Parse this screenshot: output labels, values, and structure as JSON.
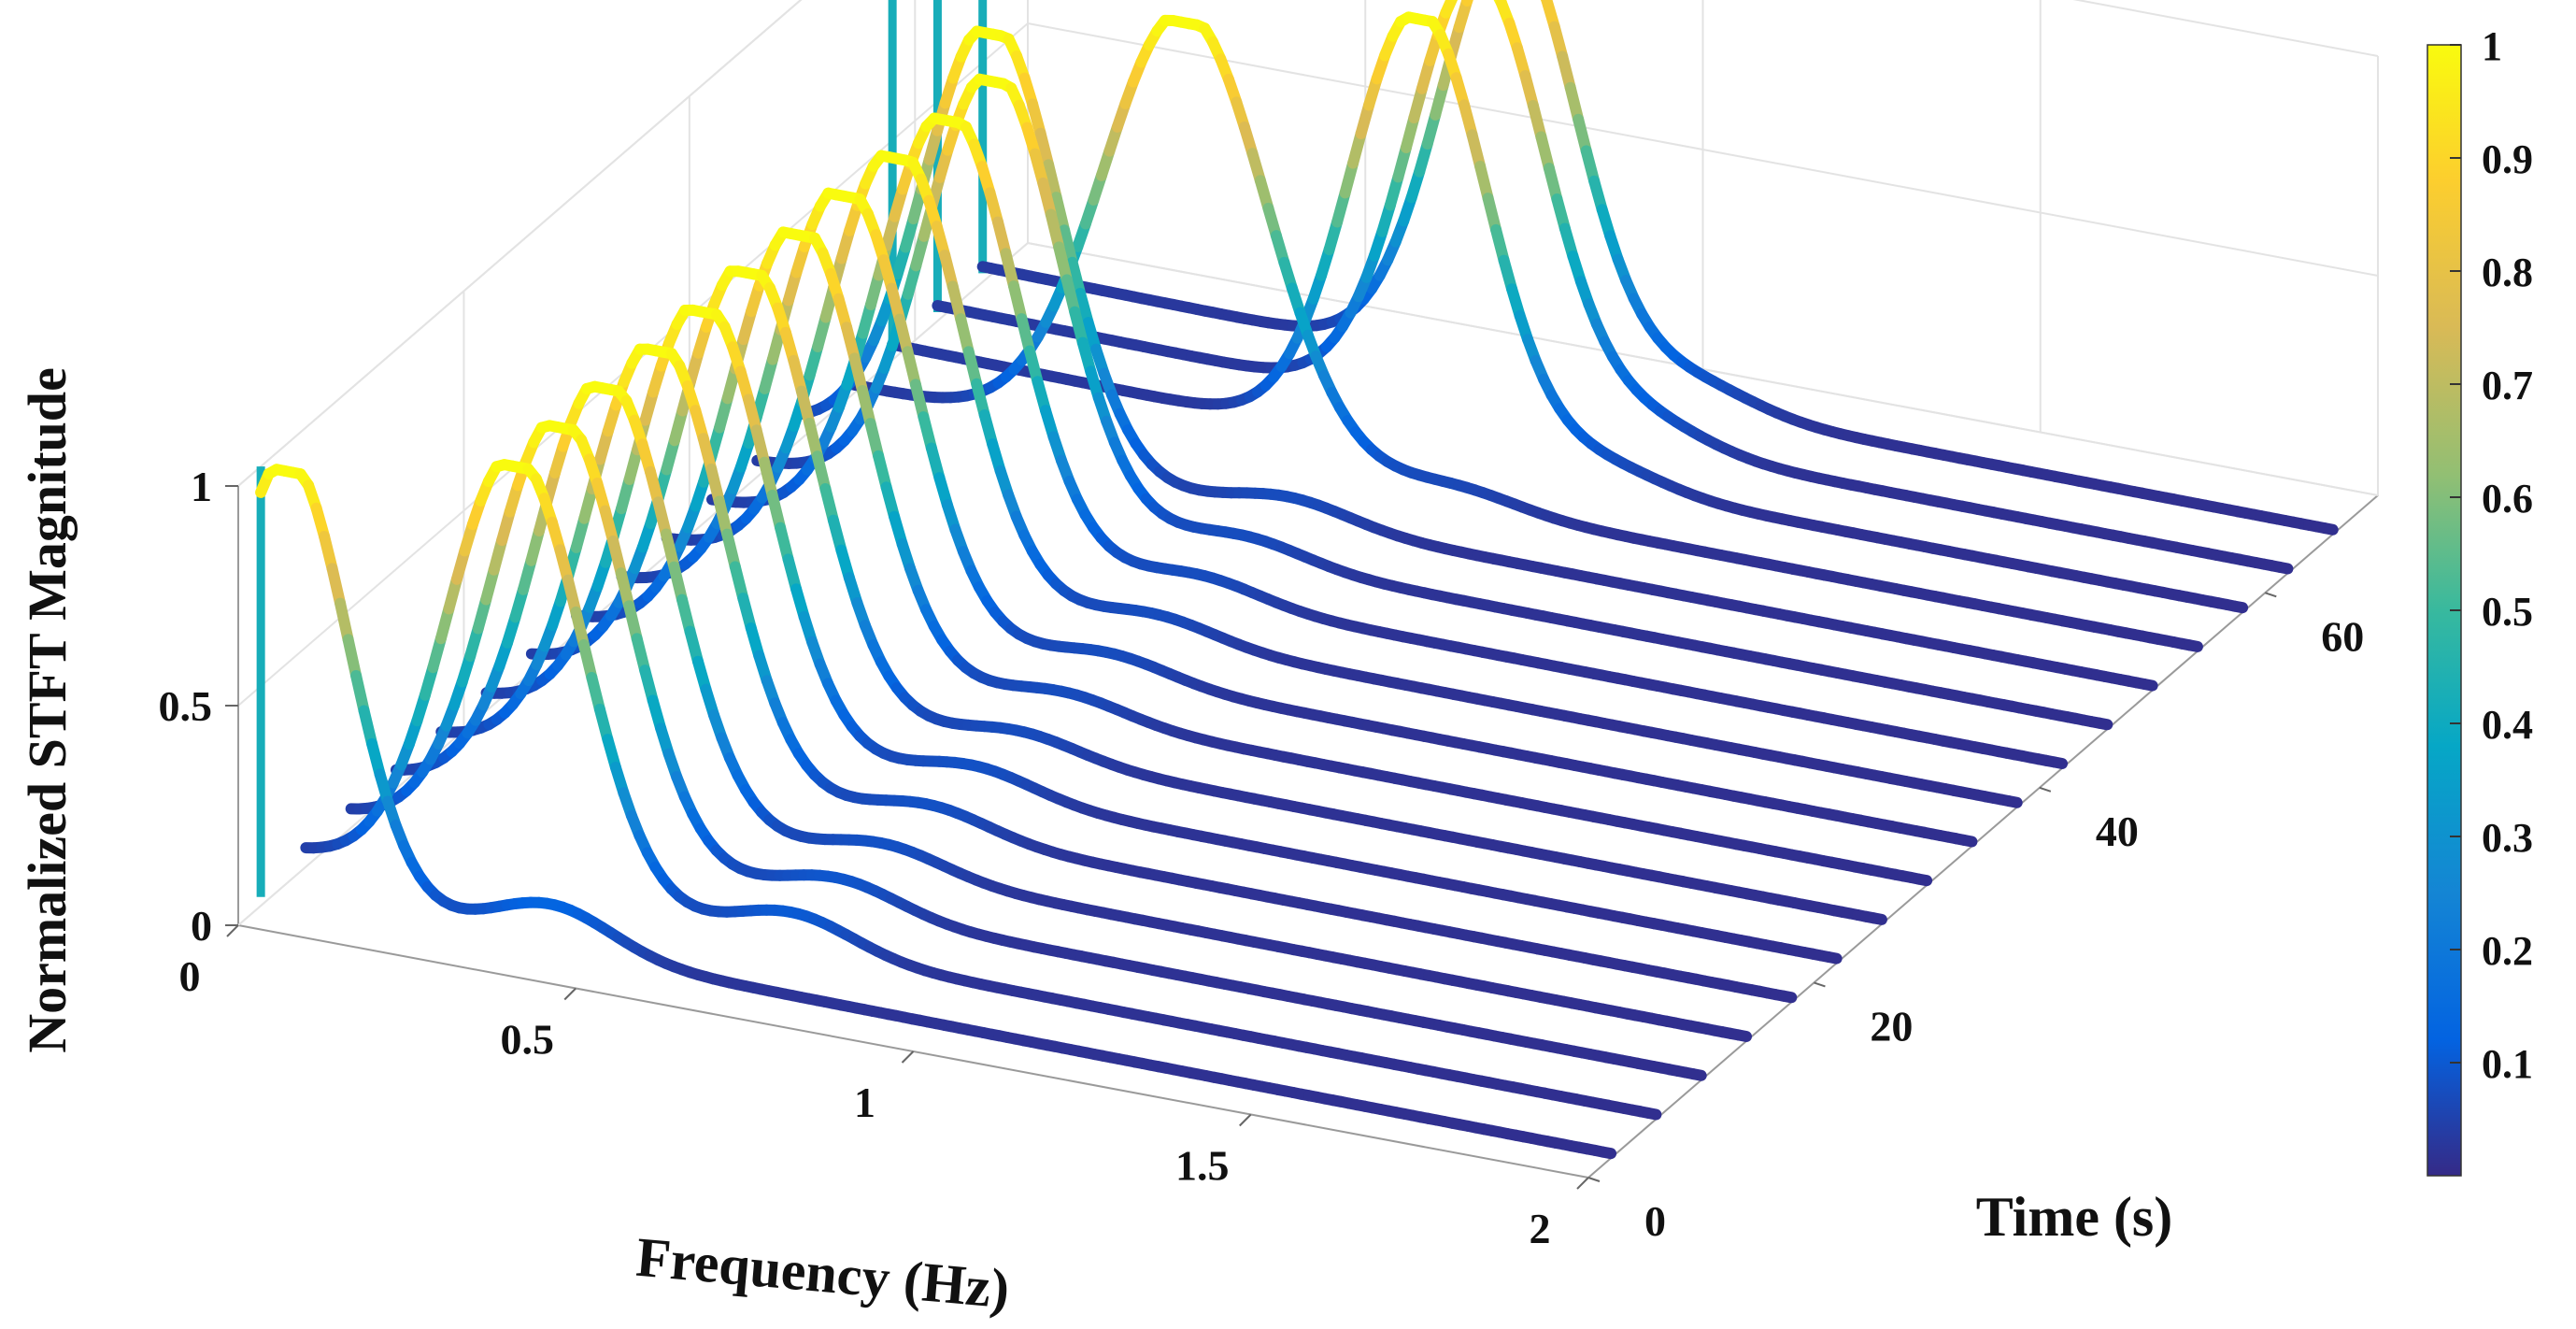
{
  "chart_data": {
    "type": "waterfall-3d-line",
    "title": "",
    "xlabel": "Frequency (Hz)",
    "ylabel": "Time (s)",
    "zlabel": "Normalized STFT Magnitude",
    "xlim": [
      0,
      2
    ],
    "ylim": [
      0,
      70
    ],
    "zlim": [
      0,
      1
    ],
    "x_ticks": [
      "0",
      "0.5",
      "1",
      "1.5",
      "2"
    ],
    "y_ticks": [
      "0",
      "20",
      "40",
      "60"
    ],
    "z_ticks": [
      "0",
      "0.5",
      "1"
    ],
    "colorbar": {
      "ticks": [
        "0.1",
        "0.2",
        "0.3",
        "0.4",
        "0.5",
        "0.6",
        "0.7",
        "0.8",
        "0.9",
        "1"
      ],
      "colormap": "parula"
    },
    "series": [
      {
        "time": 2,
        "peak_hz": 0.04,
        "width": 0.09,
        "bump_hz": 0.43,
        "bump_amp": 0.1
      },
      {
        "time": 6,
        "peak_hz": 0.31,
        "width": 0.1,
        "bump_hz": 0.72,
        "bump_amp": 0.08
      },
      {
        "time": 10,
        "peak_hz": 0.31,
        "width": 0.1,
        "bump_hz": 0.72,
        "bump_amp": 0.07
      },
      {
        "time": 14,
        "peak_hz": 0.31,
        "width": 0.1,
        "bump_hz": 0.72,
        "bump_amp": 0.06
      },
      {
        "time": 18,
        "peak_hz": 0.32,
        "width": 0.1,
        "bump_hz": 0.72,
        "bump_amp": 0.06
      },
      {
        "time": 22,
        "peak_hz": 0.32,
        "width": 0.1,
        "bump_hz": 0.72,
        "bump_amp": 0.06
      },
      {
        "time": 26,
        "peak_hz": 0.32,
        "width": 0.1,
        "bump_hz": 0.72,
        "bump_amp": 0.05
      },
      {
        "time": 30,
        "peak_hz": 0.33,
        "width": 0.1,
        "bump_hz": 0.72,
        "bump_amp": 0.05
      },
      {
        "time": 34,
        "peak_hz": 0.33,
        "width": 0.1,
        "bump_hz": 0.72,
        "bump_amp": 0.05
      },
      {
        "time": 38,
        "peak_hz": 0.34,
        "width": 0.1,
        "bump_hz": 0.72,
        "bump_amp": 0.05
      },
      {
        "time": 42,
        "peak_hz": 0.35,
        "width": 0.1,
        "bump_hz": 0.72,
        "bump_amp": 0.05
      },
      {
        "time": 46,
        "peak_hz": 0.35,
        "width": 0.1,
        "bump_hz": 0.72,
        "bump_amp": 0.05
      },
      {
        "time": 50,
        "peak_hz": 0.28,
        "width": 0.1,
        "bump_hz": 0.72,
        "bump_amp": 0.05
      },
      {
        "time": 54,
        "peak_hz": 0.5,
        "width": 0.12,
        "bump_hz": 0.9,
        "bump_amp": 0.04
      },
      {
        "time": 58,
        "peak_hz": 0.78,
        "width": 0.1,
        "bump_hz": 1.05,
        "bump_amp": 0.05
      },
      {
        "time": 62,
        "peak_hz": 0.8,
        "width": 0.1,
        "bump_hz": 1.05,
        "bump_amp": 0.06
      },
      {
        "time": 66,
        "peak_hz": 0.78,
        "width": 0.1,
        "bump_hz": 1.05,
        "bump_amp": 0.06
      }
    ]
  }
}
